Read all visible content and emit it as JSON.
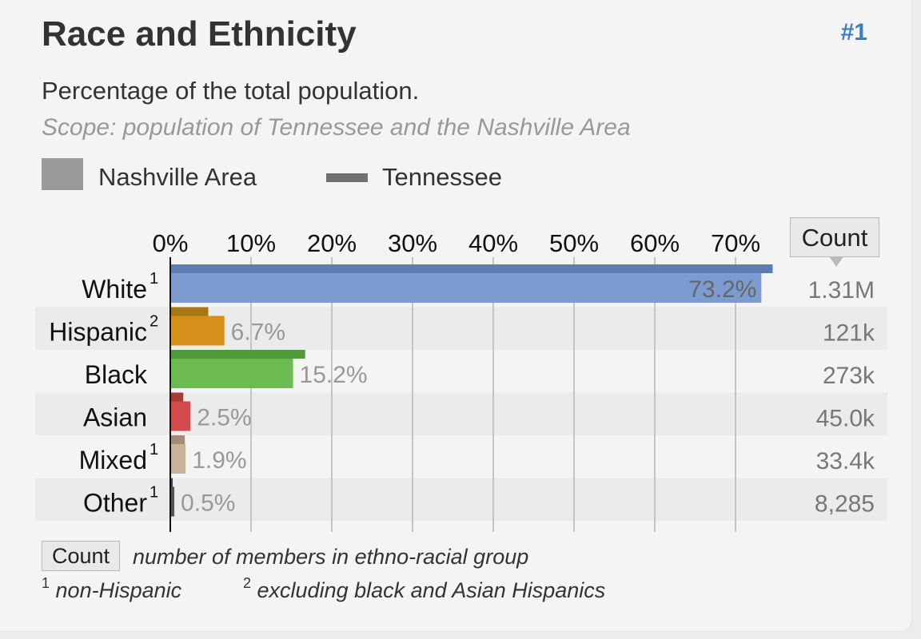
{
  "header": {
    "title": "Race and Ethnicity",
    "rank": "#1",
    "subtitle": "Percentage of the total population.",
    "scope": "Scope: population of Tennessee and the Nashville Area"
  },
  "legend": {
    "area_label": "Nashville Area",
    "state_label": "Tennessee"
  },
  "count_header": "Count",
  "footer": {
    "count_key": "Count",
    "count_desc": "number of members in ethno-racial group",
    "note1_mark": "1",
    "note1_text": "non-Hispanic",
    "note2_mark": "2",
    "note2_text": "excluding black and Asian Hispanics"
  },
  "chart_data": {
    "type": "bar",
    "orientation": "horizontal",
    "title": "Race and Ethnicity",
    "xlim": [
      0,
      80
    ],
    "x_ticks": [
      "0%",
      "10%",
      "20%",
      "30%",
      "40%",
      "50%",
      "60%",
      "70%"
    ],
    "categories": [
      "White",
      "Hispanic",
      "Black",
      "Asian",
      "Mixed",
      "Other"
    ],
    "superscripts": [
      "1",
      "2",
      "",
      "",
      "1",
      "1"
    ],
    "series": [
      {
        "name": "Nashville Area",
        "values": [
          73.2,
          6.7,
          15.2,
          2.5,
          1.9,
          0.5
        ],
        "labels": [
          "73.2%",
          "6.7%",
          "15.2%",
          "2.5%",
          "1.9%",
          "0.5%"
        ]
      },
      {
        "name": "Tennessee",
        "values": [
          74.6,
          4.7,
          16.7,
          1.6,
          1.8,
          0.3
        ]
      }
    ],
    "counts": [
      "1.31M",
      "121k",
      "273k",
      "45.0k",
      "33.4k",
      "8,285"
    ],
    "colors": {
      "area": [
        "#7b9bd1",
        "#d4901b",
        "#6cbb50",
        "#d34a4a",
        "#c8b29a",
        "#555555"
      ],
      "state": [
        "#5d7bb4",
        "#a87613",
        "#4e9938",
        "#a83a3a",
        "#a08c78",
        "#444444"
      ]
    }
  }
}
